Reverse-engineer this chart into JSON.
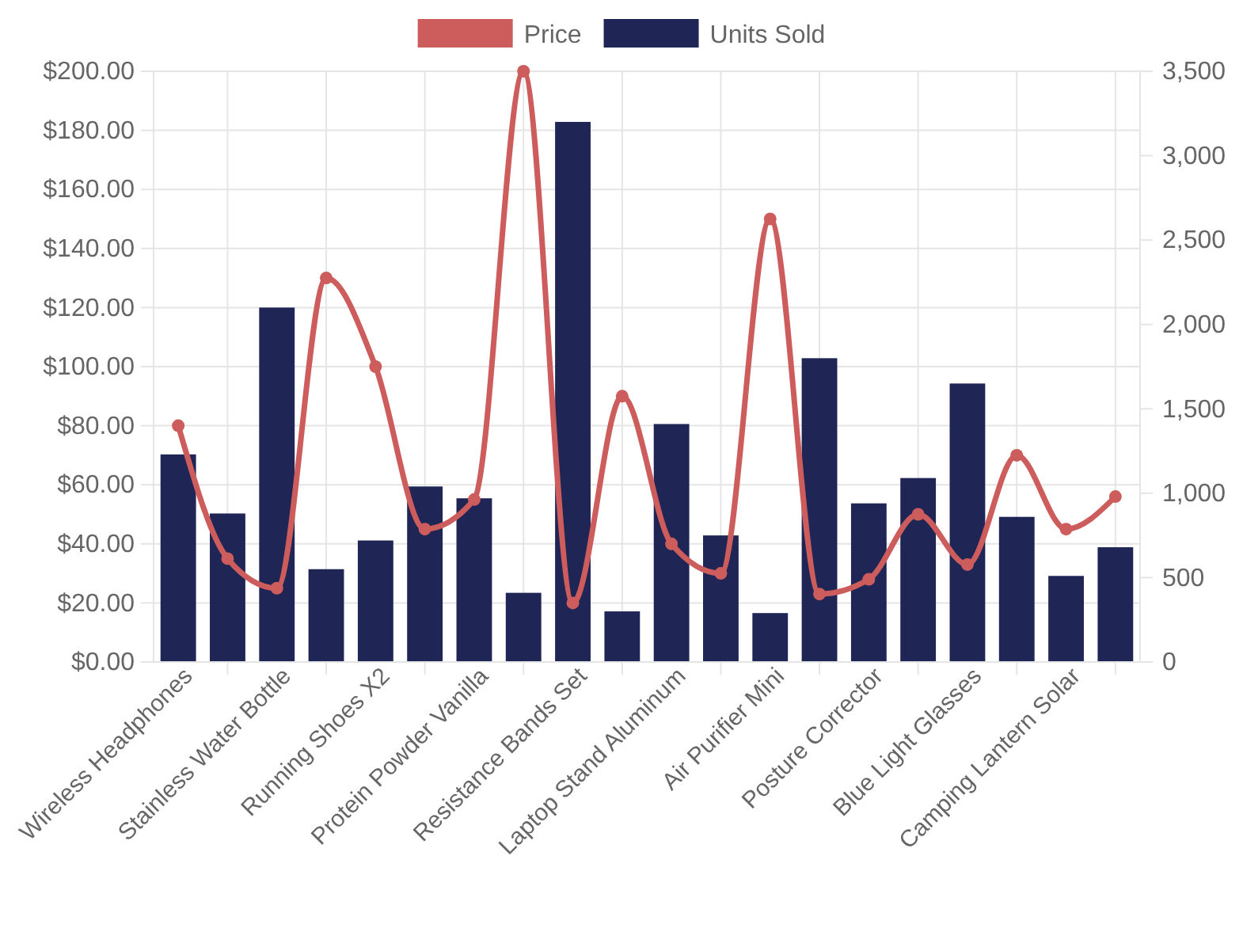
{
  "chart_data": {
    "type": "bar",
    "categories": [
      "Wireless Headphones",
      null,
      "Stainless Water Bottle",
      null,
      "Running Shoes X2",
      null,
      "Protein Powder Vanilla",
      null,
      "Resistance Bands Set",
      null,
      "Laptop Stand Aluminum",
      null,
      "Air Purifier Mini",
      null,
      "Posture Corrector",
      null,
      "Blue Light Glasses",
      null,
      "Camping Lantern Solar",
      null
    ],
    "series": [
      {
        "name": "Price",
        "type": "line",
        "color": "#cd5c5c",
        "values": [
          80,
          35,
          25,
          130,
          100,
          45,
          55,
          200,
          20,
          90,
          40,
          30,
          150,
          23,
          28,
          50,
          33,
          70,
          45,
          56
        ]
      },
      {
        "name": "Units Sold",
        "axis": "y2",
        "color": "#1f2555",
        "values": [
          1230,
          880,
          2100,
          550,
          720,
          1040,
          970,
          410,
          3200,
          300,
          1410,
          750,
          290,
          1800,
          940,
          1090,
          1650,
          860,
          510,
          680
        ]
      }
    ],
    "ylim": [
      0,
      200
    ],
    "yticks": [
      {
        "value": 0,
        "label": "$0.00"
      },
      {
        "value": 20,
        "label": "$20.00"
      },
      {
        "value": 40,
        "label": "$40.00"
      },
      {
        "value": 60,
        "label": "$60.00"
      },
      {
        "value": 80,
        "label": "$80.00"
      },
      {
        "value": 100,
        "label": "$100.00"
      },
      {
        "value": 120,
        "label": "$120.00"
      },
      {
        "value": 140,
        "label": "$140.00"
      },
      {
        "value": 160,
        "label": "$160.00"
      },
      {
        "value": 180,
        "label": "$180.00"
      },
      {
        "value": 200,
        "label": "$200.00"
      }
    ],
    "y2lim": [
      0,
      3500
    ],
    "y2ticks": [
      0,
      500,
      {
        "value": 1000,
        "label": "1,000"
      },
      {
        "value": 1500,
        "label": "1,500"
      },
      {
        "value": 2000,
        "label": "2,000"
      },
      {
        "value": 2500,
        "label": "2,500"
      },
      {
        "value": 3000,
        "label": "3,000"
      },
      {
        "value": 3500,
        "label": "3,500"
      }
    ],
    "grid": true,
    "legend": "top",
    "marker": "circle",
    "line_style": "solid"
  }
}
